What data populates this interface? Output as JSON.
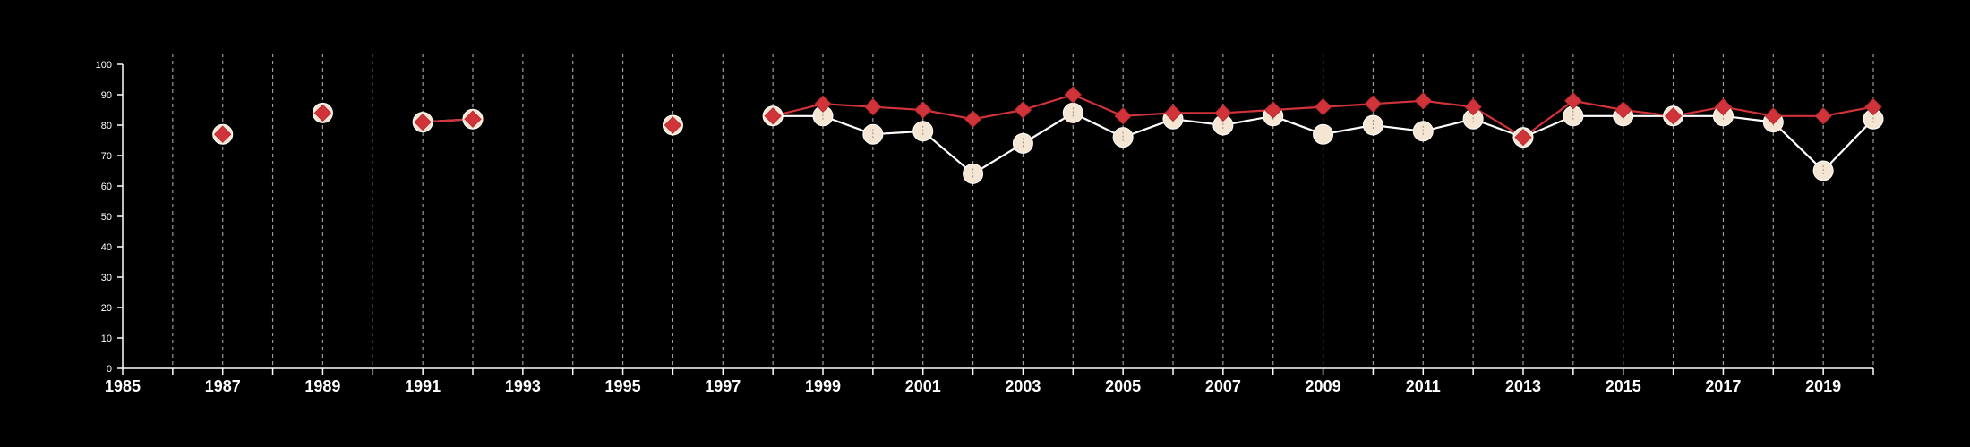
{
  "chart_data": {
    "type": "line",
    "title": "",
    "xlabel": "",
    "ylabel": "",
    "xlim": [
      1985,
      2020
    ],
    "ylim": [
      0,
      100
    ],
    "x_ticks": [
      1985,
      1987,
      1989,
      1991,
      1993,
      1995,
      1997,
      1999,
      2001,
      2003,
      2005,
      2007,
      2009,
      2011,
      2013,
      2015,
      2017,
      2019
    ],
    "y_ticks": [
      0,
      10,
      20,
      30,
      40,
      50,
      60,
      70,
      80,
      90,
      100
    ],
    "vertical_grid": "dashed, every year from 1986 to 2020",
    "background": "#000000",
    "series": [
      {
        "marker": "circle",
        "color": "#f5e6d3",
        "line_color": "#ffffff",
        "points": [
          [
            1987,
            77
          ],
          [
            1989,
            84
          ],
          [
            1991,
            81
          ],
          [
            1992,
            82
          ],
          [
            1996,
            80
          ],
          [
            1998,
            83
          ],
          [
            1999,
            83
          ],
          [
            2000,
            77
          ],
          [
            2001,
            78
          ],
          [
            2002,
            64
          ],
          [
            2003,
            74
          ],
          [
            2004,
            84
          ],
          [
            2005,
            76
          ],
          [
            2006,
            82
          ],
          [
            2007,
            80
          ],
          [
            2008,
            83
          ],
          [
            2009,
            77
          ],
          [
            2010,
            80
          ],
          [
            2011,
            78
          ],
          [
            2012,
            82
          ],
          [
            2013,
            76
          ],
          [
            2014,
            83
          ],
          [
            2015,
            83
          ],
          [
            2016,
            83
          ],
          [
            2017,
            83
          ],
          [
            2018,
            81
          ],
          [
            2019,
            65
          ],
          [
            2020,
            82
          ]
        ]
      },
      {
        "marker": "diamond",
        "color": "#d1333a",
        "line_color": "#d1333a",
        "points": [
          [
            1987,
            77
          ],
          [
            1989,
            84
          ],
          [
            1991,
            81
          ],
          [
            1992,
            82
          ],
          [
            1996,
            80
          ],
          [
            1998,
            83
          ],
          [
            1999,
            87
          ],
          [
            2000,
            86
          ],
          [
            2001,
            85
          ],
          [
            2002,
            82
          ],
          [
            2003,
            85
          ],
          [
            2004,
            90
          ],
          [
            2005,
            83
          ],
          [
            2006,
            84
          ],
          [
            2007,
            84
          ],
          [
            2008,
            85
          ],
          [
            2009,
            86
          ],
          [
            2010,
            87
          ],
          [
            2011,
            88
          ],
          [
            2012,
            86
          ],
          [
            2013,
            76
          ],
          [
            2014,
            88
          ],
          [
            2015,
            85
          ],
          [
            2016,
            83
          ],
          [
            2017,
            86
          ],
          [
            2018,
            83
          ],
          [
            2019,
            83
          ],
          [
            2020,
            86
          ]
        ]
      }
    ]
  }
}
